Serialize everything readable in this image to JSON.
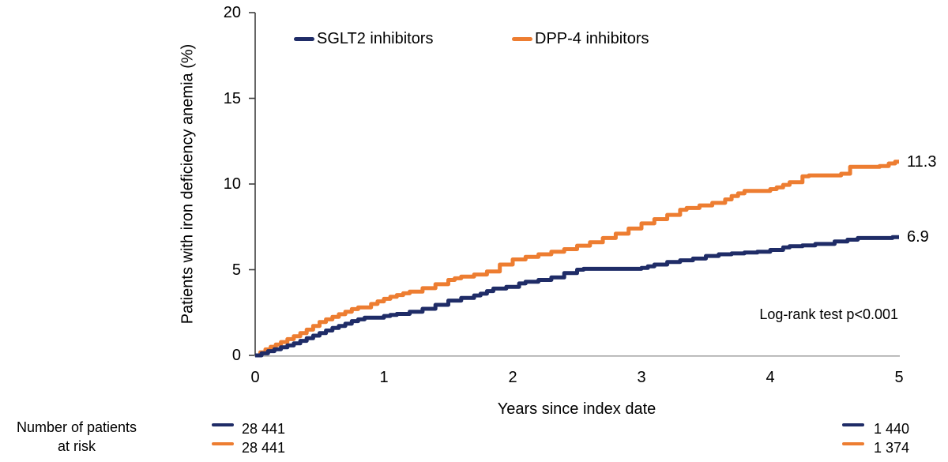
{
  "chart_data": {
    "type": "line",
    "subtype": "kaplan-meier-step",
    "title": "",
    "xlabel": "Years since index date",
    "ylabel": "Patients with iron deficiency anemia (%)",
    "xlim": [
      0,
      5
    ],
    "ylim": [
      0,
      20
    ],
    "xticks": [
      "0",
      "1",
      "2",
      "3",
      "4",
      "5"
    ],
    "yticks": [
      "0",
      "5",
      "10",
      "15",
      "20"
    ],
    "grid": "off",
    "legend_position": "top-inside",
    "annotation": "Log-rank test p<0.001",
    "series": [
      {
        "name": "SGLT2 inhibitors",
        "color": "#1F2C67",
        "end_label": "6.9",
        "points": [
          [
            0,
            0
          ],
          [
            0.05,
            0.12
          ],
          [
            0.1,
            0.25
          ],
          [
            0.15,
            0.36
          ],
          [
            0.2,
            0.47
          ],
          [
            0.25,
            0.58
          ],
          [
            0.3,
            0.7
          ],
          [
            0.35,
            0.85
          ],
          [
            0.4,
            1.0
          ],
          [
            0.45,
            1.15
          ],
          [
            0.5,
            1.3
          ],
          [
            0.55,
            1.45
          ],
          [
            0.6,
            1.6
          ],
          [
            0.65,
            1.72
          ],
          [
            0.7,
            1.85
          ],
          [
            0.75,
            2.0
          ],
          [
            0.8,
            2.1
          ],
          [
            0.85,
            2.2
          ],
          [
            1.0,
            2.3
          ],
          [
            1.05,
            2.36
          ],
          [
            1.1,
            2.42
          ],
          [
            1.2,
            2.55
          ],
          [
            1.3,
            2.72
          ],
          [
            1.4,
            2.95
          ],
          [
            1.5,
            3.2
          ],
          [
            1.6,
            3.35
          ],
          [
            1.7,
            3.5
          ],
          [
            1.75,
            3.6
          ],
          [
            1.8,
            3.75
          ],
          [
            1.85,
            3.9
          ],
          [
            1.95,
            4.0
          ],
          [
            2.05,
            4.2
          ],
          [
            2.1,
            4.3
          ],
          [
            2.2,
            4.4
          ],
          [
            2.3,
            4.55
          ],
          [
            2.4,
            4.8
          ],
          [
            2.5,
            5.0
          ],
          [
            2.55,
            5.05
          ],
          [
            3.0,
            5.1
          ],
          [
            3.05,
            5.2
          ],
          [
            3.1,
            5.3
          ],
          [
            3.2,
            5.45
          ],
          [
            3.3,
            5.55
          ],
          [
            3.4,
            5.65
          ],
          [
            3.5,
            5.8
          ],
          [
            3.6,
            5.9
          ],
          [
            3.7,
            5.95
          ],
          [
            3.8,
            6.0
          ],
          [
            3.9,
            6.05
          ],
          [
            4.0,
            6.15
          ],
          [
            4.1,
            6.3
          ],
          [
            4.15,
            6.37
          ],
          [
            4.25,
            6.42
          ],
          [
            4.35,
            6.5
          ],
          [
            4.5,
            6.65
          ],
          [
            4.6,
            6.75
          ],
          [
            4.68,
            6.85
          ],
          [
            4.9,
            6.85
          ],
          [
            4.95,
            6.9
          ],
          [
            5.0,
            6.9
          ]
        ]
      },
      {
        "name": "DPP-4 inhibitors",
        "color": "#ED7D31",
        "end_label": "11.3",
        "points": [
          [
            0,
            0
          ],
          [
            0.04,
            0.18
          ],
          [
            0.08,
            0.35
          ],
          [
            0.12,
            0.5
          ],
          [
            0.16,
            0.63
          ],
          [
            0.2,
            0.78
          ],
          [
            0.25,
            0.95
          ],
          [
            0.3,
            1.12
          ],
          [
            0.35,
            1.3
          ],
          [
            0.4,
            1.5
          ],
          [
            0.45,
            1.72
          ],
          [
            0.5,
            1.95
          ],
          [
            0.55,
            2.1
          ],
          [
            0.6,
            2.25
          ],
          [
            0.65,
            2.4
          ],
          [
            0.7,
            2.55
          ],
          [
            0.75,
            2.7
          ],
          [
            0.8,
            2.8
          ],
          [
            0.9,
            3.0
          ],
          [
            0.95,
            3.15
          ],
          [
            1.0,
            3.3
          ],
          [
            1.05,
            3.42
          ],
          [
            1.1,
            3.52
          ],
          [
            1.15,
            3.62
          ],
          [
            1.2,
            3.72
          ],
          [
            1.3,
            3.92
          ],
          [
            1.4,
            4.15
          ],
          [
            1.5,
            4.4
          ],
          [
            1.55,
            4.5
          ],
          [
            1.6,
            4.6
          ],
          [
            1.7,
            4.72
          ],
          [
            1.8,
            4.9
          ],
          [
            1.9,
            5.3
          ],
          [
            2.0,
            5.6
          ],
          [
            2.1,
            5.75
          ],
          [
            2.2,
            5.9
          ],
          [
            2.3,
            6.05
          ],
          [
            2.4,
            6.2
          ],
          [
            2.5,
            6.4
          ],
          [
            2.6,
            6.6
          ],
          [
            2.7,
            6.85
          ],
          [
            2.8,
            7.1
          ],
          [
            2.9,
            7.4
          ],
          [
            3.0,
            7.7
          ],
          [
            3.1,
            7.95
          ],
          [
            3.2,
            8.2
          ],
          [
            3.3,
            8.5
          ],
          [
            3.35,
            8.6
          ],
          [
            3.45,
            8.75
          ],
          [
            3.55,
            8.9
          ],
          [
            3.65,
            9.1
          ],
          [
            3.7,
            9.3
          ],
          [
            3.75,
            9.45
          ],
          [
            3.8,
            9.6
          ],
          [
            4.0,
            9.7
          ],
          [
            4.05,
            9.8
          ],
          [
            4.1,
            9.95
          ],
          [
            4.15,
            10.1
          ],
          [
            4.25,
            10.45
          ],
          [
            4.3,
            10.5
          ],
          [
            4.55,
            10.6
          ],
          [
            4.62,
            11.0
          ],
          [
            4.85,
            11.05
          ],
          [
            4.92,
            11.2
          ],
          [
            4.97,
            11.3
          ],
          [
            5.0,
            11.3
          ]
        ]
      }
    ]
  },
  "risk_table": {
    "label_line1": "Number of patients",
    "label_line2": "at risk",
    "left": [
      {
        "series_index": 0,
        "value": "28 441"
      },
      {
        "series_index": 1,
        "value": "28 441"
      }
    ],
    "right": [
      {
        "series_index": 0,
        "value": "1 440"
      },
      {
        "series_index": 1,
        "value": "1 374"
      }
    ]
  },
  "axis_colors": {
    "y_axis": "#3f3f3f",
    "x_axis": "#a6a6a6"
  }
}
